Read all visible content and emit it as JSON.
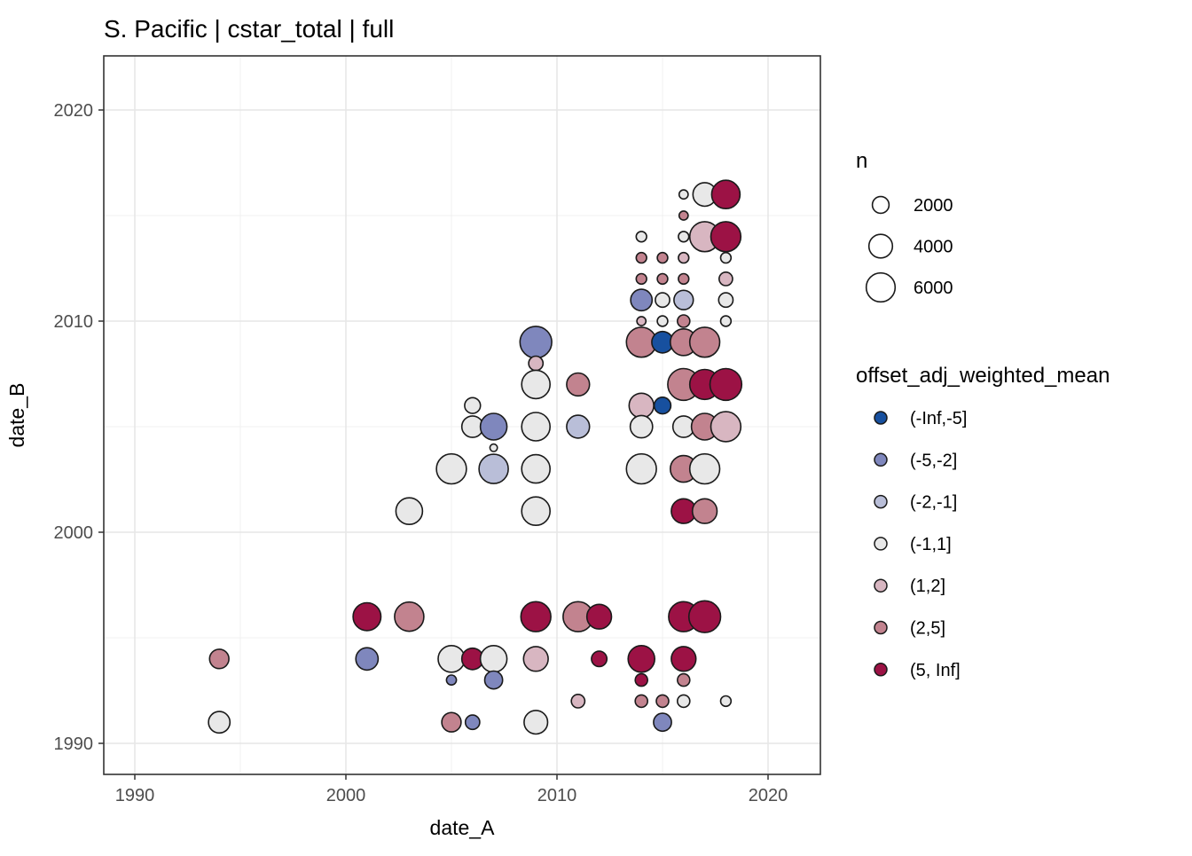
{
  "title": "S. Pacific | cstar_total | full",
  "axes": {
    "x": {
      "label": "date_A",
      "ticks": [
        1990,
        2000,
        2010,
        2020
      ],
      "minor": [
        1995,
        2005,
        2015
      ]
    },
    "y": {
      "label": "date_B",
      "ticks": [
        1990,
        2000,
        2010,
        2020
      ],
      "minor": [
        1995,
        2005,
        2015
      ]
    }
  },
  "legend": {
    "size": {
      "title": "n",
      "entries": [
        2000,
        4000,
        6000
      ]
    },
    "color": {
      "title": "offset_adj_weighted_mean",
      "entries": [
        {
          "label": "(-Inf,-5]",
          "color": "#17509f"
        },
        {
          "label": "(-5,-2]",
          "color": "#7f87bd"
        },
        {
          "label": "(-2,-1]",
          "color": "#b9bed8"
        },
        {
          "label": "(-1,1]",
          "color": "#e8e8e8"
        },
        {
          "label": "(1,2]",
          "color": "#d8b6c1"
        },
        {
          "label": "(2,5]",
          "color": "#c2838f"
        },
        {
          "label": "(5, Inf]",
          "color": "#9c1245"
        }
      ]
    }
  },
  "chart_data": {
    "type": "scatter",
    "title": "S. Pacific | cstar_total | full",
    "xlabel": "date_A",
    "ylabel": "date_B",
    "xlim": [
      1988.5,
      2022.5
    ],
    "ylim": [
      1988.5,
      2022.5
    ],
    "grid": true,
    "size_variable": "n",
    "color_variable": "offset_adj_weighted_mean",
    "points": [
      {
        "x": 1994,
        "y": 1994,
        "n": 2700,
        "bin": "(2,5]"
      },
      {
        "x": 1994,
        "y": 1991,
        "n": 3300,
        "bin": "(-1,1]"
      },
      {
        "x": 2001,
        "y": 1996,
        "n": 5600,
        "bin": "(5, Inf]"
      },
      {
        "x": 2001,
        "y": 1994,
        "n": 3600,
        "bin": "(-5,-2]"
      },
      {
        "x": 2003,
        "y": 2001,
        "n": 5100,
        "bin": "(-1,1]"
      },
      {
        "x": 2003,
        "y": 1996,
        "n": 6200,
        "bin": "(2,5]"
      },
      {
        "x": 2005,
        "y": 2003,
        "n": 6500,
        "bin": "(-1,1]"
      },
      {
        "x": 2005,
        "y": 1994,
        "n": 5100,
        "bin": "(-1,1]"
      },
      {
        "x": 2005,
        "y": 1993,
        "n": 700,
        "bin": "(-5,-2]"
      },
      {
        "x": 2005,
        "y": 1991,
        "n": 2700,
        "bin": "(2,5]"
      },
      {
        "x": 2006,
        "y": 2006,
        "n": 1800,
        "bin": "(-1,1]"
      },
      {
        "x": 2006,
        "y": 2005,
        "n": 3300,
        "bin": "(-1,1]"
      },
      {
        "x": 2006,
        "y": 1994,
        "n": 3300,
        "bin": "(5, Inf]"
      },
      {
        "x": 2006,
        "y": 1991,
        "n": 1500,
        "bin": "(-5,-2]"
      },
      {
        "x": 2007,
        "y": 2005,
        "n": 5100,
        "bin": "(-5,-2]"
      },
      {
        "x": 2007,
        "y": 2004,
        "n": 400,
        "bin": "(-1,1]"
      },
      {
        "x": 2007,
        "y": 2003,
        "n": 6200,
        "bin": "(-2,-1]"
      },
      {
        "x": 2007,
        "y": 1994,
        "n": 5100,
        "bin": "(-1,1]"
      },
      {
        "x": 2007,
        "y": 1993,
        "n": 2300,
        "bin": "(-5,-2]"
      },
      {
        "x": 2009,
        "y": 2009,
        "n": 7300,
        "bin": "(-5,-2]"
      },
      {
        "x": 2009,
        "y": 2008,
        "n": 1500,
        "bin": "(1,2]"
      },
      {
        "x": 2009,
        "y": 2007,
        "n": 5800,
        "bin": "(-1,1]"
      },
      {
        "x": 2009,
        "y": 2005,
        "n": 5800,
        "bin": "(-1,1]"
      },
      {
        "x": 2009,
        "y": 2003,
        "n": 5800,
        "bin": "(-1,1]"
      },
      {
        "x": 2009,
        "y": 2001,
        "n": 5800,
        "bin": "(-1,1]"
      },
      {
        "x": 2009,
        "y": 1996,
        "n": 6500,
        "bin": "(5, Inf]"
      },
      {
        "x": 2009,
        "y": 1994,
        "n": 4400,
        "bin": "(1,2]"
      },
      {
        "x": 2009,
        "y": 1991,
        "n": 4000,
        "bin": "(-1,1]"
      },
      {
        "x": 2011,
        "y": 2007,
        "n": 3800,
        "bin": "(2,5]"
      },
      {
        "x": 2011,
        "y": 2005,
        "n": 3800,
        "bin": "(-2,-1]"
      },
      {
        "x": 2011,
        "y": 1996,
        "n": 6500,
        "bin": "(2,5]"
      },
      {
        "x": 2011,
        "y": 1992,
        "n": 1300,
        "bin": "(1,2]"
      },
      {
        "x": 2012,
        "y": 1996,
        "n": 4400,
        "bin": "(5, Inf]"
      },
      {
        "x": 2012,
        "y": 1994,
        "n": 1700,
        "bin": "(5, Inf]"
      },
      {
        "x": 2014,
        "y": 2014,
        "n": 800,
        "bin": "(-1,1]"
      },
      {
        "x": 2014,
        "y": 2013,
        "n": 800,
        "bin": "(2,5]"
      },
      {
        "x": 2014,
        "y": 2012,
        "n": 800,
        "bin": "(2,5]"
      },
      {
        "x": 2014,
        "y": 2011,
        "n": 3300,
        "bin": "(-5,-2]"
      },
      {
        "x": 2014,
        "y": 2010,
        "n": 600,
        "bin": "(1,2]"
      },
      {
        "x": 2014,
        "y": 2009,
        "n": 6500,
        "bin": "(2,5]"
      },
      {
        "x": 2014,
        "y": 2006,
        "n": 4400,
        "bin": "(1,2]"
      },
      {
        "x": 2014,
        "y": 2005,
        "n": 3600,
        "bin": "(-1,1]"
      },
      {
        "x": 2014,
        "y": 2003,
        "n": 6500,
        "bin": "(-1,1]"
      },
      {
        "x": 2014,
        "y": 1994,
        "n": 5100,
        "bin": "(5, Inf]"
      },
      {
        "x": 2014,
        "y": 1993,
        "n": 1100,
        "bin": "(5, Inf]"
      },
      {
        "x": 2014,
        "y": 1992,
        "n": 1100,
        "bin": "(2,5]"
      },
      {
        "x": 2015,
        "y": 2013,
        "n": 800,
        "bin": "(2,5]"
      },
      {
        "x": 2015,
        "y": 2012,
        "n": 800,
        "bin": "(2,5]"
      },
      {
        "x": 2015,
        "y": 2011,
        "n": 1500,
        "bin": "(-1,1]"
      },
      {
        "x": 2015,
        "y": 2010,
        "n": 800,
        "bin": "(-1,1]"
      },
      {
        "x": 2015,
        "y": 2009,
        "n": 3300,
        "bin": "(-Inf,-5]"
      },
      {
        "x": 2015,
        "y": 2006,
        "n": 2000,
        "bin": "(-Inf,-5]"
      },
      {
        "x": 2015,
        "y": 1992,
        "n": 1100,
        "bin": "(2,5]"
      },
      {
        "x": 2015,
        "y": 1991,
        "n": 2300,
        "bin": "(-5,-2]"
      },
      {
        "x": 2016,
        "y": 2016,
        "n": 600,
        "bin": "(-1,1]"
      },
      {
        "x": 2016,
        "y": 2015,
        "n": 600,
        "bin": "(2,5]"
      },
      {
        "x": 2016,
        "y": 2014,
        "n": 800,
        "bin": "(-1,1]"
      },
      {
        "x": 2016,
        "y": 2013,
        "n": 800,
        "bin": "(1,2]"
      },
      {
        "x": 2016,
        "y": 2012,
        "n": 800,
        "bin": "(2,5]"
      },
      {
        "x": 2016,
        "y": 2011,
        "n": 2700,
        "bin": "(-2,-1]"
      },
      {
        "x": 2016,
        "y": 2010,
        "n": 1100,
        "bin": "(2,5]"
      },
      {
        "x": 2016,
        "y": 2009,
        "n": 5100,
        "bin": "(2,5]"
      },
      {
        "x": 2016,
        "y": 2007,
        "n": 7300,
        "bin": "(2,5]"
      },
      {
        "x": 2016,
        "y": 2005,
        "n": 3300,
        "bin": "(-1,1]"
      },
      {
        "x": 2016,
        "y": 2003,
        "n": 5100,
        "bin": "(2,5]"
      },
      {
        "x": 2016,
        "y": 2001,
        "n": 4400,
        "bin": "(5, Inf]"
      },
      {
        "x": 2016,
        "y": 1996,
        "n": 6500,
        "bin": "(5, Inf]"
      },
      {
        "x": 2016,
        "y": 1994,
        "n": 4400,
        "bin": "(5, Inf]"
      },
      {
        "x": 2016,
        "y": 1993,
        "n": 1100,
        "bin": "(2,5]"
      },
      {
        "x": 2016,
        "y": 1992,
        "n": 1100,
        "bin": "(-1,1]"
      },
      {
        "x": 2017,
        "y": 2016,
        "n": 4000,
        "bin": "(-1,1]"
      },
      {
        "x": 2017,
        "y": 2014,
        "n": 6500,
        "bin": "(1,2]"
      },
      {
        "x": 2017,
        "y": 2009,
        "n": 6500,
        "bin": "(2,5]"
      },
      {
        "x": 2017,
        "y": 2007,
        "n": 6500,
        "bin": "(5, Inf]"
      },
      {
        "x": 2017,
        "y": 2005,
        "n": 5100,
        "bin": "(2,5]"
      },
      {
        "x": 2017,
        "y": 2003,
        "n": 6500,
        "bin": "(-1,1]"
      },
      {
        "x": 2017,
        "y": 2001,
        "n": 4400,
        "bin": "(2,5]"
      },
      {
        "x": 2017,
        "y": 1996,
        "n": 7300,
        "bin": "(5, Inf]"
      },
      {
        "x": 2018,
        "y": 2016,
        "n": 5800,
        "bin": "(5, Inf]"
      },
      {
        "x": 2018,
        "y": 2014,
        "n": 6500,
        "bin": "(5, Inf]"
      },
      {
        "x": 2018,
        "y": 2013,
        "n": 800,
        "bin": "(-1,1]"
      },
      {
        "x": 2018,
        "y": 2012,
        "n": 1300,
        "bin": "(1,2]"
      },
      {
        "x": 2018,
        "y": 2011,
        "n": 1500,
        "bin": "(-1,1]"
      },
      {
        "x": 2018,
        "y": 2010,
        "n": 800,
        "bin": "(-1,1]"
      },
      {
        "x": 2018,
        "y": 2007,
        "n": 7300,
        "bin": "(5, Inf]"
      },
      {
        "x": 2018,
        "y": 2005,
        "n": 6500,
        "bin": "(1,2]"
      },
      {
        "x": 2018,
        "y": 1992,
        "n": 800,
        "bin": "(-1,1]"
      }
    ]
  }
}
